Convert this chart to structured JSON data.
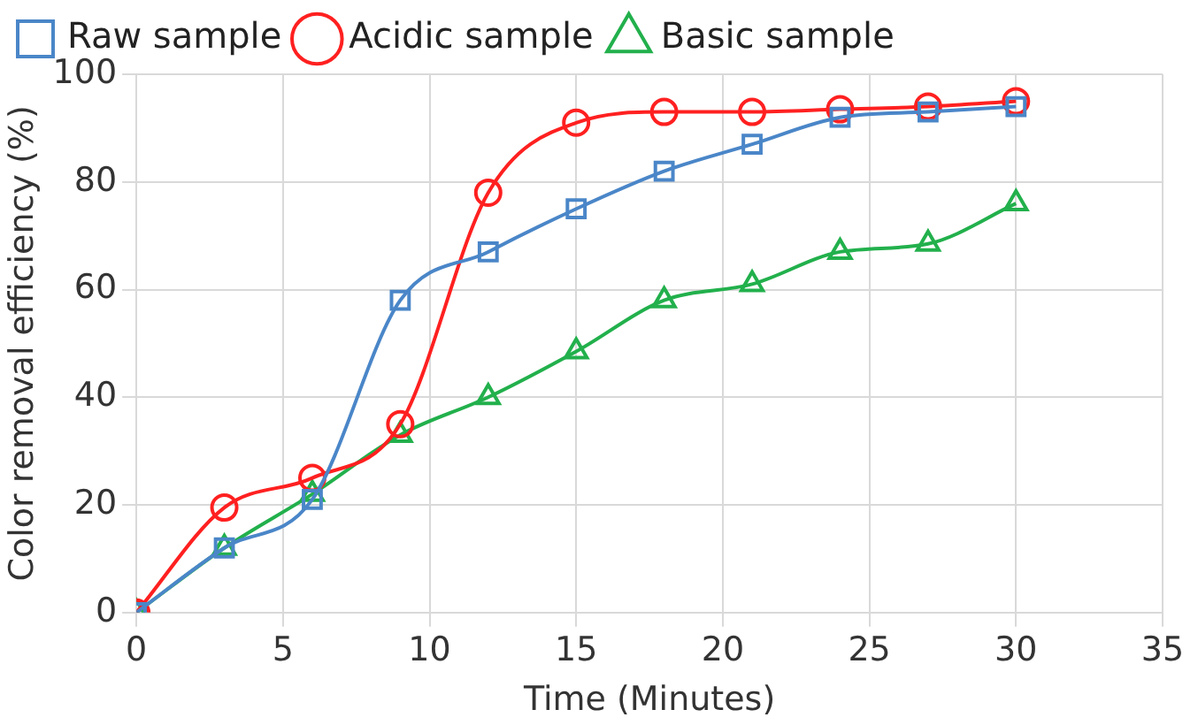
{
  "chart_data": {
    "type": "line",
    "xlabel": "Time (Minutes)",
    "ylabel": "Color removal efficiency (%)",
    "x": [
      0,
      3,
      6,
      9,
      12,
      15,
      18,
      21,
      24,
      27,
      30
    ],
    "series": [
      {
        "name": "Raw sample",
        "color": "#4a86c8",
        "marker": "square",
        "values": [
          0,
          12,
          21,
          58,
          67,
          75,
          82,
          87,
          92,
          93,
          94
        ]
      },
      {
        "name": "Acidic sample",
        "color": "#ff2020",
        "marker": "circle",
        "values": [
          0,
          19.5,
          25,
          35,
          78,
          91,
          93,
          93,
          93.5,
          94,
          95
        ]
      },
      {
        "name": "Basic sample",
        "color": "#22b04c",
        "marker": "triangle",
        "values": [
          0,
          12,
          22,
          33,
          40,
          48.5,
          58,
          61,
          67,
          68.5,
          76
        ]
      }
    ],
    "xlim": [
      0,
      35
    ],
    "xticks": [
      0,
      5,
      10,
      15,
      20,
      25,
      30,
      35
    ],
    "ylim": [
      0,
      100
    ],
    "yticks": [
      0,
      20,
      40,
      60,
      80,
      100
    ],
    "grid": true,
    "legend": "top",
    "line_style": "solid"
  }
}
